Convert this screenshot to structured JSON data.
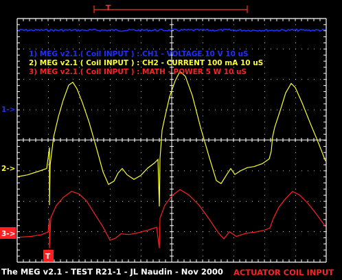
{
  "annotations": {
    "ch1": "1) MEG v2.1 ( Coil INPUT ) : CH1 - VOLTAGE 10  V 10 uS",
    "ch2": "2) MEG v2.1 ( Coil INPUT ) : CH2 - CURRENT 100 mA 10 uS",
    "math": "3) MEG v2.1 ( Coil INPUT ) : MATH - POWER 5  W 10 uS"
  },
  "markers": {
    "ch1": "1->",
    "ch2": "2->",
    "ch3": "3->",
    "trigger_top": "T",
    "trigger_bottom": "T"
  },
  "footer": {
    "caption": "The MEG v2.1 - TEST R21-1 - JL Naudin - Nov 2000",
    "title": "ACTUATOR COIL INPUT"
  },
  "colors": {
    "background": "#000000",
    "graticule": "#ffffff",
    "ch1": "#1e2fff",
    "ch2": "#ffff2a",
    "math": "#ff2020",
    "trigger": "#ff3030"
  }
}
